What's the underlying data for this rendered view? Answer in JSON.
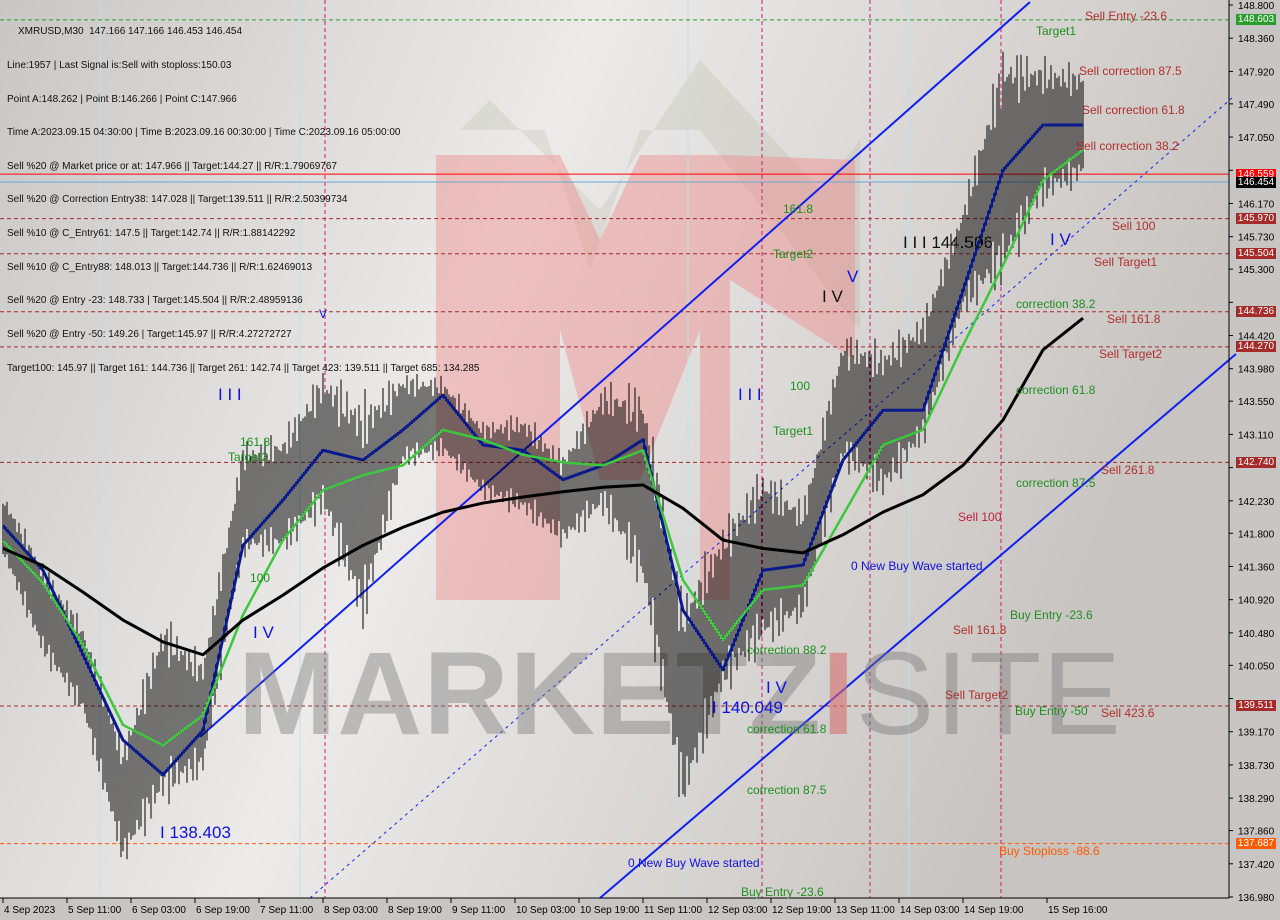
{
  "header": {
    "symbol_line": "XMRUSD,M30  147.166 147.166 146.453 146.454",
    "lines": [
      "Line:1957 | Last Signal is:Sell with stoploss:150.03",
      "Point A:148.262 | Point B:146.266 | Point C:147.966",
      "Time A:2023.09.15 04:30:00 | Time B:2023.09.16 00:30:00 | Time C:2023.09.16 05:00:00",
      "Sell %20 @ Market price or at: 147.966 || Target:144.27 || R/R:1.79069767",
      "Sell %20 @ Correction Entry38: 147.028 || Target:139.511 || R/R:2.50399734",
      "Sell %10 @ C_Entry61: 147.5 || Target:142.74 || R/R:1.88142292",
      "Sell %10 @ C_Entry88: 148.013 || Target:144.736 || R/R:1.62469013",
      "Sell %20 @ Entry -23: 148.733 | Target:145.504 || R/R:2.48959136",
      "Sell %20 @ Entry -50: 149.26 | Target:145.97 || R/R:4.27272727",
      "Target100: 145.97 || Target 161: 144.736 || Target 261: 142.74 || Target 423: 139.511 || Target 685: 134.285"
    ]
  },
  "watermark": "MARKETZISITE",
  "levels": [
    {
      "price": "148.603",
      "color": "#2a9d2a",
      "style": "dashed",
      "tag_bg": "#2a9d2a"
    },
    {
      "price": "146.559",
      "color": "#ff0000",
      "style": "solid",
      "tag_bg": "#ff0000"
    },
    {
      "price": "146.454",
      "color": "#6aa8d0",
      "style": "solid",
      "tag_bg": "#000000"
    },
    {
      "price": "145.970",
      "color": "#a52a2a",
      "style": "dashed",
      "tag_bg": "#a52a2a"
    },
    {
      "price": "145.504",
      "color": "#a52a2a",
      "style": "dashed",
      "tag_bg": "#a52a2a"
    },
    {
      "price": "144.736",
      "color": "#a52a2a",
      "style": "dashed",
      "tag_bg": "#a52a2a"
    },
    {
      "price": "144.270",
      "color": "#a52a2a",
      "style": "dashed",
      "tag_bg": "#a52a2a"
    },
    {
      "price": "142.740",
      "color": "#a52a2a",
      "style": "dashed",
      "tag_bg": "#a52a2a"
    },
    {
      "price": "139.511",
      "color": "#a52a2a",
      "style": "dashed",
      "tag_bg": "#a52a2a"
    },
    {
      "price": "137.687",
      "color": "#ff5a00",
      "style": "dashed",
      "tag_bg": "#ff5a00"
    }
  ],
  "annotations": {
    "sell_entry_236": "Sell Entry -23.6",
    "target1_top": "Target1",
    "sell_corr_875": "Sell correction 87.5",
    "sell_corr_618": "Sell correction 61.8",
    "sell_corr_382": "Sell correction 38.2",
    "sell_100_right": "Sell 100",
    "sell_target1": "Sell Target1",
    "sell_1618_right": "Sell 161.8",
    "sell_target2_right": "Sell Target2",
    "sell_2618": "Sell  261.8",
    "sell_4236": "Sell  423.6",
    "buy_stoploss": "Buy Stoploss -88.6",
    "corr_382_right": "correction 38.2",
    "corr_618_right": "correction 61.8",
    "corr_875_right": "correction 87.5",
    "sell_100_mid": "Sell 100",
    "new_buy_wave_1": "0 New Buy Wave started",
    "buy_entry_236_right": "Buy Entry -23.6",
    "sell_1618_mid": "Sell 161.8",
    "sell_target2_mid": "Sell Target2",
    "buy_entry_50": "Buy Entry -50",
    "wave_144506": "I I I 144.506",
    "wave_iv_black": "I V",
    "wave_v_blue": "V",
    "wave_iv_right": "I V",
    "fib_1618_mid": "161.8",
    "target2_mid": "Target2",
    "fib_100_mid": "100",
    "wave_iii_left": "I I I",
    "wave_iii_mid": "I I I",
    "target1_mid": "Target1",
    "fib_1618_left": "161.8",
    "target_left": "Target2",
    "wave_v_left": "V",
    "wave_iv_left": "I V",
    "wave_138403": "I 138.403",
    "corr_882": "correction 88.2",
    "wave_140049": "I 140.049",
    "corr_618_low": "correction 61.8",
    "corr_875_low": "correction 87.5",
    "new_buy_wave_2": "0 New Buy Wave started",
    "buy_entry_236_low": "Buy Entry -23.6",
    "wave_iv_low": "I V",
    "fib_100_left": "100"
  },
  "chart_data": {
    "type": "line",
    "title": "XMRUSD,M30",
    "ylim": [
      136.98,
      148.8
    ],
    "grid": false,
    "y_ticks": [
      "148.800",
      "148.360",
      "147.920",
      "147.490",
      "147.050",
      "146.610",
      "146.170",
      "145.730",
      "145.300",
      "144.860",
      "144.420",
      "143.980",
      "143.550",
      "143.110",
      "142.670",
      "142.230",
      "141.800",
      "141.360",
      "140.920",
      "140.480",
      "140.050",
      "139.610",
      "139.170",
      "138.730",
      "138.290",
      "137.860",
      "137.420",
      "136.980"
    ],
    "x_ticks": [
      {
        "label": "4 Sep 2023",
        "t": "2023-09-04 19:00"
      },
      {
        "label": "5 Sep 11:00",
        "t": "2023-09-05 11:00"
      },
      {
        "label": "6 Sep 03:00",
        "t": "2023-09-06 03:00"
      },
      {
        "label": "6 Sep 19:00",
        "t": "2023-09-06 19:00"
      },
      {
        "label": "7 Sep 11:00",
        "t": "2023-09-07 11:00"
      },
      {
        "label": "8 Sep 03:00",
        "t": "2023-09-08 03:00"
      },
      {
        "label": "8 Sep 19:00",
        "t": "2023-09-08 19:00"
      },
      {
        "label": "9 Sep 11:00",
        "t": "2023-09-09 11:00"
      },
      {
        "label": "10 Sep 03:00",
        "t": "2023-09-10 03:00"
      },
      {
        "label": "10 Sep 19:00",
        "t": "2023-09-10 19:00"
      },
      {
        "label": "11 Sep 11:00",
        "t": "2023-09-11 11:00"
      },
      {
        "label": "12 Sep 03:00",
        "t": "2023-09-12 03:00"
      },
      {
        "label": "12 Sep 19:00",
        "t": "2023-09-12 19:00"
      },
      {
        "label": "13 Sep 11:00",
        "t": "2023-09-13 11:00"
      },
      {
        "label": "14 Sep 03:00",
        "t": "2023-09-14 03:00"
      },
      {
        "label": "14 Sep 19:00",
        "t": "2023-09-14 19:00"
      },
      {
        "label": "15 Sep 16:00",
        "t": "2023-09-15 16:00"
      }
    ],
    "x": [
      "2023-09-04 19:00",
      "2023-09-05 05:00",
      "2023-09-05 15:00",
      "2023-09-06 01:00",
      "2023-09-06 11:00",
      "2023-09-06 21:00",
      "2023-09-07 07:00",
      "2023-09-07 17:00",
      "2023-09-08 03:00",
      "2023-09-08 13:00",
      "2023-09-08 23:00",
      "2023-09-09 09:00",
      "2023-09-09 19:00",
      "2023-09-10 05:00",
      "2023-09-10 15:00",
      "2023-09-11 01:00",
      "2023-09-11 11:00",
      "2023-09-11 21:00",
      "2023-09-12 07:00",
      "2023-09-12 17:00",
      "2023-09-13 03:00",
      "2023-09-13 13:00",
      "2023-09-13 23:00",
      "2023-09-14 09:00",
      "2023-09-14 19:00",
      "2023-09-15 05:00",
      "2023-09-15 15:00",
      "2023-09-16 01:00"
    ],
    "high": [
      142.37,
      141.45,
      140.65,
      139.06,
      140.78,
      140.19,
      143.04,
      143.17,
      144.03,
      143.7,
      143.96,
      143.9,
      143.3,
      143.43,
      142.9,
      143.83,
      143.83,
      141.05,
      141.98,
      142.77,
      142.24,
      144.49,
      144.36,
      144.76,
      146.22,
      148.34,
      148.14,
      148.01
    ],
    "low": [
      141.45,
      140.12,
      139.33,
      137.34,
      138.13,
      138.53,
      141.45,
      141.45,
      141.98,
      140.39,
      142.64,
      142.77,
      142.24,
      141.98,
      141.58,
      141.98,
      140.92,
      138.0,
      139.59,
      140.19,
      140.58,
      142.64,
      142.17,
      142.9,
      144.63,
      145.02,
      146.08,
      146.41
    ],
    "series": [
      {
        "color": "#0a1a8a",
        "values": [
          141.9,
          141.31,
          140.19,
          139.06,
          138.6,
          139.19,
          141.64,
          142.24,
          142.9,
          142.77,
          143.17,
          143.63,
          142.97,
          142.9,
          142.51,
          142.7,
          143.04,
          140.78,
          139.99,
          141.31,
          141.38,
          142.77,
          143.43,
          143.43,
          145.02,
          146.61,
          147.21,
          147.21
        ]
      },
      {
        "color": "#3cc83c",
        "values": [
          141.7,
          141.14,
          140.32,
          139.26,
          138.99,
          139.39,
          140.72,
          141.71,
          142.37,
          142.57,
          142.7,
          143.17,
          143.04,
          142.84,
          142.74,
          142.7,
          142.9,
          141.18,
          140.39,
          141.05,
          141.11,
          142.04,
          142.97,
          143.17,
          144.29,
          145.35,
          146.48,
          146.88
        ]
      },
      {
        "color": "#000000",
        "values": [
          141.6,
          141.37,
          141.02,
          140.65,
          140.36,
          140.19,
          140.65,
          140.98,
          141.34,
          141.64,
          141.88,
          142.08,
          142.2,
          142.28,
          142.35,
          142.41,
          142.44,
          142.13,
          141.71,
          141.6,
          141.54,
          141.78,
          142.08,
          142.31,
          142.7,
          143.3,
          144.23,
          144.65
        ]
      }
    ]
  }
}
